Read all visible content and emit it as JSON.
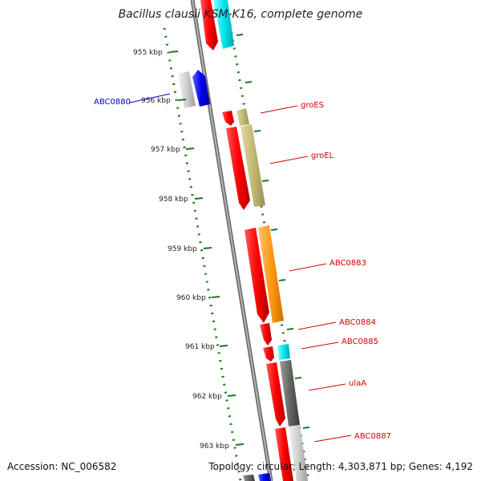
{
  "title": "Bacillus clausii KSM-K16, complete genome",
  "footer": {
    "accession": "Accession: NC_006582",
    "summary": "Topology: circular; Length: 4,303,871 bp; Genes: 4,192"
  },
  "colors": {
    "forward_label": "#d40000",
    "reverse_label": "#0000cc",
    "tick": "#1a7a1a",
    "backbone": "#8a8a8a"
  },
  "ticks": [
    "955 kbp",
    "956 kbp",
    "957 kbp",
    "958 kbp",
    "959 kbp",
    "960 kbp",
    "961 kbp",
    "962 kbp",
    "963 kbp"
  ],
  "labels": [
    {
      "text": "ABC0880",
      "strand": "reverse"
    },
    {
      "text": "groES",
      "strand": "forward"
    },
    {
      "text": "groEL",
      "strand": "forward"
    },
    {
      "text": "ABC0883",
      "strand": "forward"
    },
    {
      "text": "ABC0884",
      "strand": "forward"
    },
    {
      "text": "ABC0885",
      "strand": "forward"
    },
    {
      "text": "ulaA",
      "strand": "forward"
    },
    {
      "text": "ABC0887",
      "strand": "forward"
    }
  ]
}
